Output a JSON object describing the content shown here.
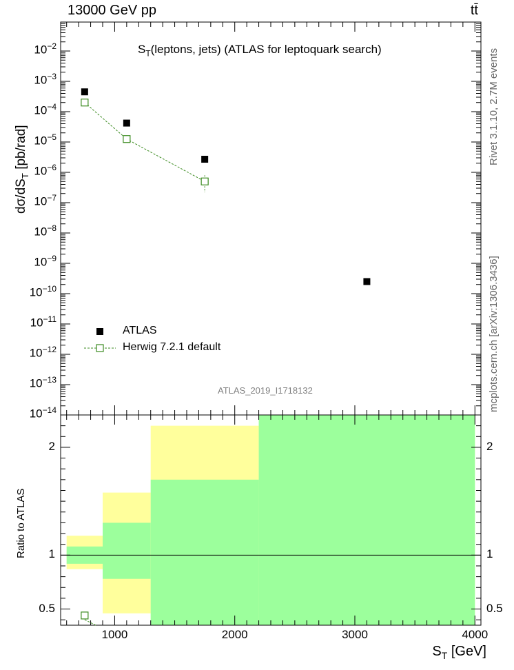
{
  "header": {
    "energy_label": "13000 GeV pp",
    "process_label": "tt̄"
  },
  "sidebar": {
    "rivet_label": "Rivet 3.1.10, 2.7M events",
    "mcplots_label": "mcplots.cern.ch [arXiv:1306.3436]"
  },
  "colors": {
    "data": "#000000",
    "mc": "#3a8a1e",
    "band_green": "#9cff9c",
    "band_yellow": "#ffff9c"
  },
  "chart_data": [
    {
      "type": "scatter",
      "panel": "main",
      "title": "S_T(leptons, jets) (ATLAS for leptoquark search)",
      "analysis_id": "ATLAS_2019_I1718132",
      "ylabel": "dσ/dS_T [pb/rad]",
      "yscale": "log",
      "ylim": [
        1e-14,
        0.09
      ],
      "xlim": [
        550,
        4050
      ],
      "y_tick_labels": [
        "10^-14",
        "10^-13",
        "10^-12",
        "10^-11",
        "10^-10",
        "10^-9",
        "10^-8",
        "10^-7",
        "10^-6",
        "10^-5",
        "10^-4",
        "10^-3",
        "10^-2"
      ],
      "series": [
        {
          "name": "ATLAS",
          "marker": "filled-square",
          "x": [
            750,
            1100,
            1750,
            3100
          ],
          "y": [
            0.00045,
            4.2e-05,
            2.7e-06,
            2.5e-10
          ]
        },
        {
          "name": "Herwig 7.2.1 default",
          "marker": "open-square",
          "line": "dashed",
          "x": [
            750,
            1100,
            1750
          ],
          "y": [
            0.0002,
            1.25e-05,
            5e-07
          ],
          "y_err_low": [
            0.00018,
            1.1e-05,
            2.2e-07
          ],
          "y_err_high": [
            0.00022,
            1.4e-05,
            8e-07
          ]
        }
      ],
      "legend": {
        "position": "bottom-left",
        "entries": [
          "ATLAS",
          "Herwig 7.2.1 default"
        ]
      }
    },
    {
      "type": "area",
      "panel": "ratio",
      "ylabel": "Ratio to ATLAS",
      "xlabel": "S_T [GeV]",
      "ylim": [
        0.35,
        2.3
      ],
      "xlim": [
        550,
        4050
      ],
      "y_tick_labels": [
        "0.5",
        "1",
        "2"
      ],
      "x_tick_labels": [
        "1000",
        "2000",
        "3000",
        "4000"
      ],
      "reference_line": 1,
      "bins": [
        {
          "x_low": 600,
          "x_high": 900,
          "green": [
            0.92,
            1.08
          ],
          "yellow": [
            0.87,
            1.18
          ]
        },
        {
          "x_low": 900,
          "x_high": 1300,
          "green": [
            0.78,
            1.3
          ],
          "yellow": [
            0.46,
            1.58
          ]
        },
        {
          "x_low": 1300,
          "x_high": 2200,
          "green": [
            0.3,
            1.7
          ],
          "yellow": [
            0.3,
            2.2
          ]
        },
        {
          "x_low": 2200,
          "x_high": 4000,
          "green": [
            0.3,
            2.5
          ],
          "yellow": [
            0.3,
            2.5
          ]
        }
      ],
      "series": [
        {
          "name": "Herwig 7.2.1 default",
          "x": [
            750
          ],
          "y": [
            0.44
          ],
          "y_err_low": [
            0.42
          ],
          "y_err_high": [
            0.46
          ]
        }
      ]
    }
  ]
}
